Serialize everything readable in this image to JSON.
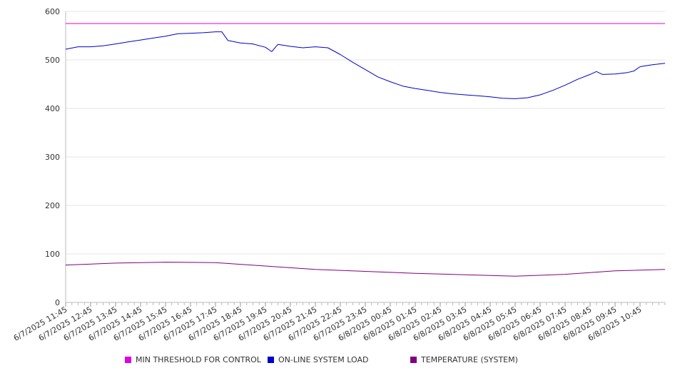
{
  "chart_data": {
    "type": "line",
    "title": "",
    "xlabel": "",
    "ylabel": "",
    "ylim": [
      0,
      600
    ],
    "y_ticks": [
      0,
      100,
      200,
      300,
      400,
      500,
      600
    ],
    "grid": "horizontal",
    "legend_position": "bottom",
    "x_tick_labels": [
      "6/7/2025 11:45",
      "6/7/2025 12:45",
      "6/7/2025 13:45",
      "6/7/2025 14:45",
      "6/7/2025 15:45",
      "6/7/2025 16:45",
      "6/7/2025 17:45",
      "6/7/2025 18:45",
      "6/7/2025 19:45",
      "6/7/2025 20:45",
      "6/7/2025 21:45",
      "6/7/2025 22:45",
      "6/7/2025 23:45",
      "6/8/2025 00:45",
      "6/8/2025 01:45",
      "6/8/2025 02:45",
      "6/8/2025 03:45",
      "6/8/2025 04:45",
      "6/8/2025 05:45",
      "6/8/2025 06:45",
      "6/8/2025 07:45",
      "6/8/2025 08:45",
      "6/8/2025 09:45",
      "6/8/2025 10:45"
    ],
    "series": [
      {
        "name": "MIN THRESHOLD FOR CONTROL",
        "color": "#e000e0",
        "x": [
          "6/7/2025 11:45",
          "6/8/2025 11:45"
        ],
        "values": [
          575,
          575
        ]
      },
      {
        "name": "ON-LINE SYSTEM LOAD",
        "color": "#0000cc",
        "x": [
          "6/7/2025 11:45",
          "6/7/2025 12:15",
          "6/7/2025 12:45",
          "6/7/2025 13:15",
          "6/7/2025 13:45",
          "6/7/2025 14:15",
          "6/7/2025 14:45",
          "6/7/2025 15:15",
          "6/7/2025 15:45",
          "6/7/2025 16:15",
          "6/7/2025 16:45",
          "6/7/2025 17:15",
          "6/7/2025 17:45",
          "6/7/2025 18:00",
          "6/7/2025 18:15",
          "6/7/2025 18:45",
          "6/7/2025 19:15",
          "6/7/2025 19:45",
          "6/7/2025 20:00",
          "6/7/2025 20:15",
          "6/7/2025 20:45",
          "6/7/2025 21:15",
          "6/7/2025 21:45",
          "6/7/2025 22:15",
          "6/7/2025 22:45",
          "6/7/2025 23:15",
          "6/7/2025 23:45",
          "6/8/2025 00:15",
          "6/8/2025 00:45",
          "6/8/2025 01:15",
          "6/8/2025 01:45",
          "6/8/2025 02:15",
          "6/8/2025 02:45",
          "6/8/2025 03:15",
          "6/8/2025 03:45",
          "6/8/2025 04:15",
          "6/8/2025 04:45",
          "6/8/2025 05:15",
          "6/8/2025 05:45",
          "6/8/2025 06:15",
          "6/8/2025 06:45",
          "6/8/2025 07:15",
          "6/8/2025 07:45",
          "6/8/2025 08:15",
          "6/8/2025 08:45",
          "6/8/2025 09:00",
          "6/8/2025 09:15",
          "6/8/2025 09:45",
          "6/8/2025 10:15",
          "6/8/2025 10:30",
          "6/8/2025 10:45",
          "6/8/2025 11:15",
          "6/8/2025 11:45"
        ],
        "values": [
          522,
          527,
          527,
          529,
          533,
          537,
          541,
          545,
          549,
          554,
          555,
          556,
          558,
          558,
          540,
          535,
          533,
          526,
          517,
          532,
          528,
          525,
          527,
          525,
          511,
          495,
          480,
          465,
          455,
          446,
          441,
          437,
          433,
          430,
          428,
          426,
          424,
          421,
          420,
          422,
          428,
          437,
          448,
          460,
          470,
          476,
          470,
          471,
          474,
          477,
          486,
          490,
          493
        ]
      },
      {
        "name": "TEMPERATURE (SYSTEM)",
        "color": "#800080",
        "x": [
          "6/7/2025 11:45",
          "6/7/2025 13:45",
          "6/7/2025 15:45",
          "6/7/2025 17:45",
          "6/7/2025 19:45",
          "6/7/2025 21:45",
          "6/7/2025 23:45",
          "6/8/2025 01:45",
          "6/8/2025 03:45",
          "6/8/2025 05:45",
          "6/8/2025 07:45",
          "6/8/2025 09:45",
          "6/8/2025 11:45"
        ],
        "values": [
          77,
          81,
          83,
          82,
          75,
          68,
          64,
          60,
          57,
          54,
          58,
          65,
          68
        ]
      }
    ]
  }
}
